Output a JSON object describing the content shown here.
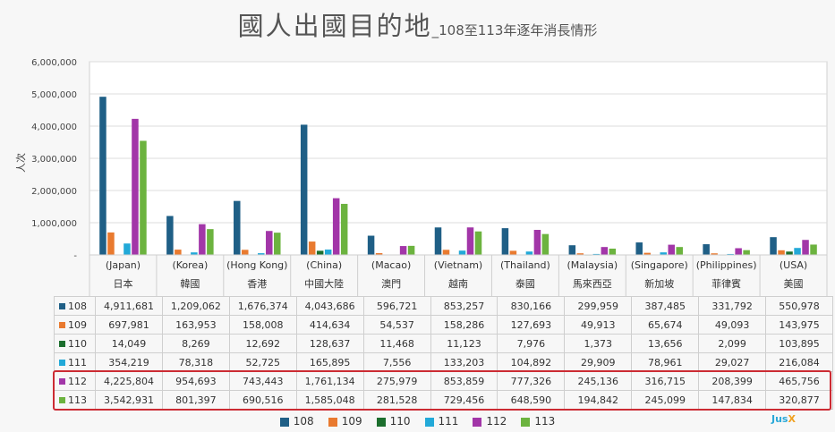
{
  "title": "國人出國目的地",
  "subtitle": "_108至113年逐年消長情形",
  "colors": {
    "108": "#1f5f86",
    "109": "#e97a2f",
    "110": "#1b6e2d",
    "111": "#22a9d8",
    "112": "#a236a8",
    "113": "#6cb33f"
  },
  "logo_text": "Jus",
  "logo_accent": "X",
  "chart_data": {
    "type": "bar",
    "ylabel": "人次",
    "ylim": [
      0,
      6000000
    ],
    "yticks": [
      "6,000,000",
      "5,000,000",
      "4,000,000",
      "3,000,000",
      "2,000,000",
      "1,000,000",
      "-"
    ],
    "ytick_values": [
      6000000,
      5000000,
      4000000,
      3000000,
      2000000,
      1000000,
      0
    ],
    "categories": [
      "日本",
      "韓國",
      "香港",
      "中國大陸",
      "澳門",
      "越南",
      "泰國",
      "馬來西亞",
      "新加坡",
      "菲律賓",
      "美國"
    ],
    "categories_en": [
      "(Japan)",
      "(Korea)",
      "(Hong Kong)",
      "(China)",
      "(Macao)",
      "(Vietnam)",
      "(Thailand)",
      "(Malaysia)",
      "(Singapore)",
      "(Philippines)",
      "(USA)"
    ],
    "series": [
      {
        "name": "108",
        "values": [
          4911681,
          1209062,
          1676374,
          4043686,
          596721,
          853257,
          830166,
          299959,
          387485,
          331792,
          550978
        ],
        "labels": [
          "4,911,681",
          "1,209,062",
          "1,676,374",
          "4,043,686",
          "596,721",
          "853,257",
          "830,166",
          "299,959",
          "387,485",
          "331,792",
          "550,978"
        ]
      },
      {
        "name": "109",
        "values": [
          697981,
          163953,
          158008,
          414634,
          54537,
          158286,
          127693,
          49913,
          65674,
          49093,
          143975
        ],
        "labels": [
          "697,981",
          "163,953",
          "158,008",
          "414,634",
          "54,537",
          "158,286",
          "127,693",
          "49,913",
          "65,674",
          "49,093",
          "143,975"
        ]
      },
      {
        "name": "110",
        "values": [
          14049,
          8269,
          12692,
          128637,
          11468,
          11123,
          7976,
          1373,
          13656,
          2099,
          103895
        ],
        "labels": [
          "14,049",
          "8,269",
          "12,692",
          "128,637",
          "11,468",
          "11,123",
          "7,976",
          "1,373",
          "13,656",
          "2,099",
          "103,895"
        ]
      },
      {
        "name": "111",
        "values": [
          354219,
          78318,
          52725,
          165895,
          7556,
          133203,
          104892,
          29909,
          78961,
          29027,
          216084
        ],
        "labels": [
          "354,219",
          "78,318",
          "52,725",
          "165,895",
          "7,556",
          "133,203",
          "104,892",
          "29,909",
          "78,961",
          "29,027",
          "216,084"
        ]
      },
      {
        "name": "112",
        "values": [
          4225804,
          954693,
          743443,
          1761134,
          275979,
          853859,
          777326,
          245136,
          316715,
          208399,
          465756
        ],
        "labels": [
          "4,225,804",
          "954,693",
          "743,443",
          "1,761,134",
          "275,979",
          "853,859",
          "777,326",
          "245,136",
          "316,715",
          "208,399",
          "465,756"
        ]
      },
      {
        "name": "113",
        "values": [
          3542931,
          801397,
          690516,
          1585048,
          281528,
          729456,
          648590,
          194842,
          245099,
          147834,
          320877
        ],
        "labels": [
          "3,542,931",
          "801,397",
          "690,516",
          "1,585,048",
          "281,528",
          "729,456",
          "648,590",
          "194,842",
          "245,099",
          "147,834",
          "320,877"
        ]
      }
    ]
  }
}
